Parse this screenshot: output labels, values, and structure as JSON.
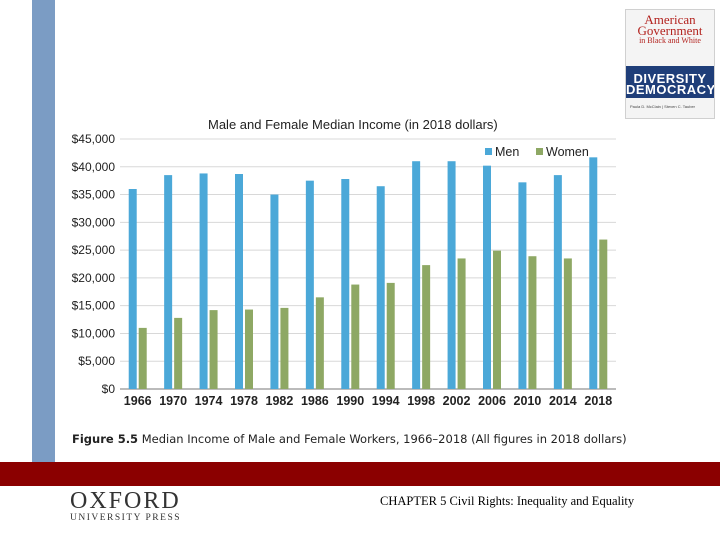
{
  "book_cover": {
    "title_line1": "American",
    "title_line2": "Government",
    "subtitle": "in Black and White",
    "band_line1": "DIVERSITY",
    "band_line2": "DEMOCRACY",
    "authors": "Paula D. McClain | Steven C. Tauber"
  },
  "figure": {
    "label": "Figure 5.5",
    "text": " Median Income of Male and Female Workers, 1966–2018 (All figures in 2018 dollars)"
  },
  "footer": {
    "publisher_main": "OXFORD",
    "publisher_sub": "UNIVERSITY PRESS",
    "chapter": "CHAPTER 5 Civil Rights: Inequality and Equality"
  },
  "colors": {
    "men": "#4ba8d8",
    "women": "#8ea864",
    "side_bar": "#7b9cc4",
    "footer_band": "#8b0000"
  },
  "chart_data": {
    "type": "bar",
    "title": "Male and Female Median Income (in 2018 dollars)",
    "xlabel": "",
    "ylabel": "",
    "categories": [
      "1966",
      "1970",
      "1974",
      "1978",
      "1982",
      "1986",
      "1990",
      "1994",
      "1998",
      "2002",
      "2006",
      "2010",
      "2014",
      "2018"
    ],
    "series": [
      {
        "name": "Men",
        "values": [
          36000,
          38500,
          38800,
          38700,
          35000,
          37500,
          37800,
          36500,
          41000,
          41000,
          40200,
          37200,
          38500,
          41700
        ]
      },
      {
        "name": "Women",
        "values": [
          11000,
          12800,
          14200,
          14300,
          14600,
          16500,
          18800,
          19100,
          22300,
          23500,
          24900,
          23900,
          23500,
          26900
        ]
      }
    ],
    "yticks": [
      "$0",
      "$5,000",
      "$10,000",
      "$15,000",
      "$20,000",
      "$25,000",
      "$30,000",
      "$35,000",
      "$40,000",
      "$45,000"
    ],
    "ylim": [
      0,
      45000
    ],
    "grid": true,
    "legend": "top-right"
  }
}
